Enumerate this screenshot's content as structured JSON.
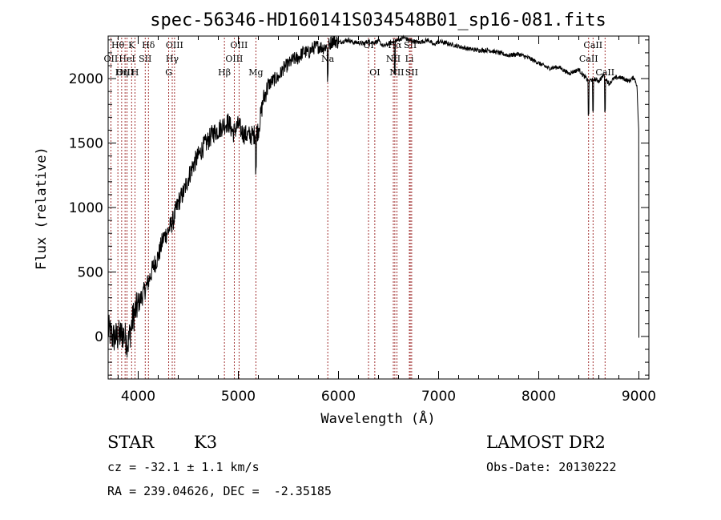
{
  "chart_data": {
    "type": "line",
    "title": "spec-56346-HD160141S034548B01_sp16-081.fits",
    "xlabel": "Wavelength (Å)",
    "ylabel": "Flux (relative)",
    "xlim": [
      3700,
      9100
    ],
    "ylim": [
      -330,
      2330
    ],
    "x_ticks": [
      4000,
      5000,
      6000,
      7000,
      8000,
      9000
    ],
    "y_ticks": [
      0,
      500,
      1000,
      1500,
      2000
    ],
    "grid": false,
    "line_color": "#000000",
    "marker_color": "#8b0000",
    "series": [
      {
        "x": [
          3700,
          3750,
          3800,
          3850,
          3900,
          3950,
          4000,
          4050,
          4100,
          4150,
          4200,
          4250,
          4300,
          4350,
          4400,
          4450,
          4500,
          4550,
          4600,
          4650,
          4700,
          4750,
          4800,
          4850,
          4900,
          4950,
          5000,
          5050,
          5100,
          5150,
          5200,
          5250,
          5300,
          5350,
          5400,
          5450,
          5500,
          5550,
          5600,
          5650,
          5700,
          5750,
          5800,
          5850,
          5900,
          5950,
          6000,
          6050,
          6100,
          6150,
          6200,
          6250,
          6300,
          6350,
          6400,
          6450,
          6500,
          6550,
          6600,
          6650,
          6700,
          6750,
          6800,
          6850,
          6900,
          6950,
          7000,
          7100,
          7200,
          7300,
          7400,
          7500,
          7600,
          7700,
          7800,
          7900,
          8000,
          8100,
          8200,
          8300,
          8400,
          8450,
          8500,
          8550,
          8600,
          8650,
          8700,
          8750,
          8800,
          8850,
          8900,
          8950,
          8980,
          9000
        ],
        "y": [
          50,
          -10,
          0,
          20,
          -50,
          150,
          250,
          330,
          420,
          540,
          620,
          760,
          820,
          900,
          1040,
          1110,
          1230,
          1330,
          1400,
          1470,
          1520,
          1580,
          1600,
          1640,
          1660,
          1580,
          1640,
          1570,
          1560,
          1560,
          1600,
          1840,
          1950,
          1990,
          2010,
          2080,
          2110,
          2150,
          2160,
          2210,
          2200,
          2240,
          2250,
          2240,
          2260,
          2300,
          2280,
          2290,
          2300,
          2280,
          2280,
          2270,
          2290,
          2280,
          2290,
          2250,
          2270,
          2290,
          2300,
          2320,
          2300,
          2290,
          2280,
          2290,
          2300,
          2260,
          2290,
          2270,
          2250,
          2230,
          2220,
          2220,
          2200,
          2180,
          2190,
          2160,
          2120,
          2080,
          2090,
          2040,
          2070,
          2020,
          1980,
          2000,
          1980,
          2030,
          1960,
          2000,
          2010,
          2000,
          1980,
          2010,
          1950,
          1550
        ]
      }
    ],
    "spectral_lines": [
      {
        "label": "Hθ",
        "wavelength": 3797,
        "row": 0
      },
      {
        "label": "K",
        "wavelength": 3934,
        "row": 0
      },
      {
        "label": "Hδ",
        "wavelength": 4102,
        "row": 0
      },
      {
        "label": "OIII",
        "wavelength": 4363,
        "row": 0
      },
      {
        "label": "OIII",
        "wavelength": 5007,
        "row": 0
      },
      {
        "label": "OI",
        "wavelength": 6300,
        "row": 0
      },
      {
        "label": "Hα",
        "wavelength": 6563,
        "row": 0
      },
      {
        "label": "SII",
        "wavelength": 6717,
        "row": 0
      },
      {
        "label": "CaII",
        "wavelength": 8542,
        "row": 0
      },
      {
        "label": "OII",
        "wavelength": 3727,
        "row": 1
      },
      {
        "label": "HeI",
        "wavelength": 3889,
        "row": 1
      },
      {
        "label": "SII",
        "wavelength": 4070,
        "row": 1
      },
      {
        "label": "Hγ",
        "wavelength": 4340,
        "row": 1
      },
      {
        "label": "OIII",
        "wavelength": 4959,
        "row": 1
      },
      {
        "label": "Na",
        "wavelength": 5893,
        "row": 1
      },
      {
        "label": "NII",
        "wavelength": 6548,
        "row": 1
      },
      {
        "label": "Li",
        "wavelength": 6708,
        "row": 1
      },
      {
        "label": "CaII",
        "wavelength": 8498,
        "row": 1
      },
      {
        "label": "OIII",
        "wavelength": 3869,
        "row": 2
      },
      {
        "label": "Hη",
        "wavelength": 3835,
        "row": 2
      },
      {
        "label": "H",
        "wavelength": 3968,
        "row": 2
      },
      {
        "label": "G",
        "wavelength": 4305,
        "row": 2
      },
      {
        "label": "Hβ",
        "wavelength": 4861,
        "row": 2
      },
      {
        "label": "Mg",
        "wavelength": 5175,
        "row": 2
      },
      {
        "label": "OI",
        "wavelength": 6363,
        "row": 2
      },
      {
        "label": "NII",
        "wavelength": 6583,
        "row": 2
      },
      {
        "label": "SII",
        "wavelength": 6731,
        "row": 2
      },
      {
        "label": "CaII",
        "wavelength": 8662,
        "row": 2
      }
    ]
  },
  "info": {
    "object_class": "STAR",
    "subclass": "K3",
    "survey": "LAMOST DR2",
    "cz": "cz = -32.1 ± 1.1 km/s",
    "obs_date": "Obs-Date: 20130222",
    "coords": "RA = 239.04626, DEC =  -2.35185"
  }
}
